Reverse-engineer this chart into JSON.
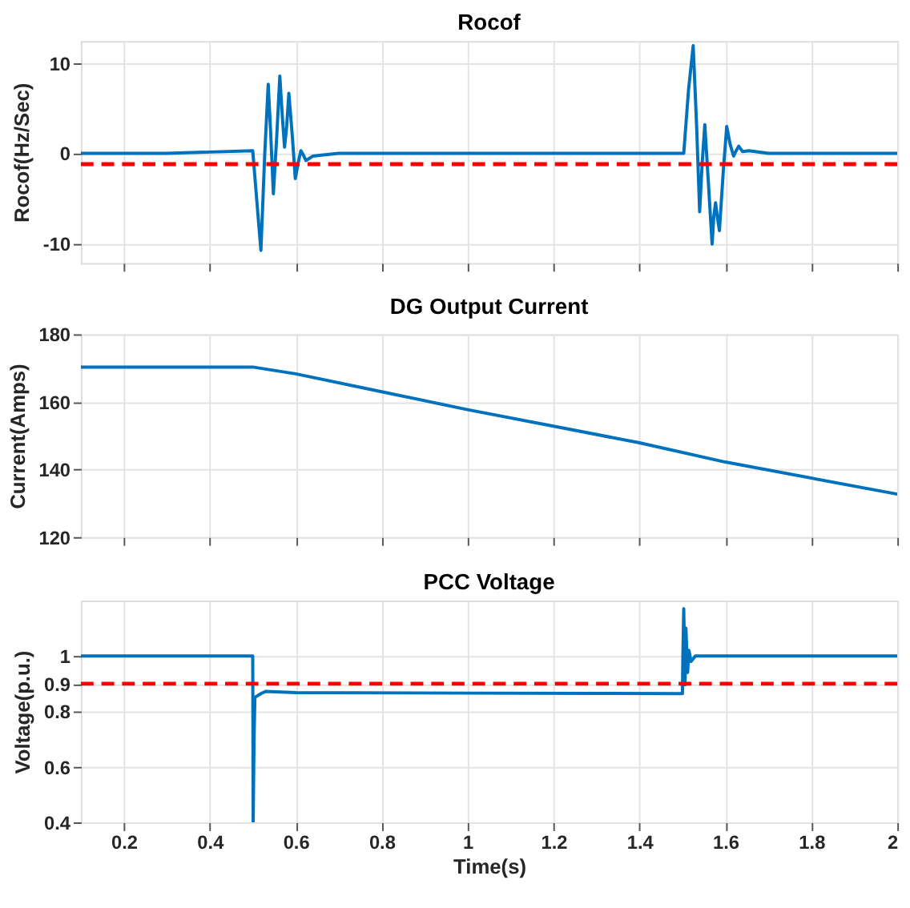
{
  "chart_data": [
    {
      "type": "line",
      "title": "Rocof",
      "ylabel": "Rocof(Hz/Sec)",
      "xlim": [
        0.1,
        2
      ],
      "xticks": [
        0.2,
        0.4,
        0.6,
        0.8,
        1,
        1.2,
        1.4,
        1.6,
        1.8,
        2
      ],
      "ylim": [
        -12.2,
        12.5
      ],
      "yticks": [
        -10,
        0,
        10
      ],
      "grid": true,
      "tick_labels": "y",
      "line_style": "solid",
      "series": [
        {
          "color": "#0072bd",
          "x": [
            0.1,
            0.3,
            0.5,
            0.509,
            0.519,
            0.528,
            0.536,
            0.542,
            0.548,
            0.556,
            0.563,
            0.569,
            0.574,
            0.579,
            0.584,
            0.592,
            0.599,
            0.606,
            0.612,
            0.618,
            0.624,
            0.64,
            0.66,
            0.7,
            1.0,
            1.3,
            1.503,
            1.514,
            1.525,
            1.533,
            1.54,
            1.546,
            1.552,
            1.56,
            1.569,
            1.573,
            1.577,
            1.581,
            1.586,
            1.595,
            1.603,
            1.611,
            1.619,
            1.625,
            1.631,
            1.64,
            1.655,
            1.7,
            2.0
          ],
          "values": [
            0,
            0,
            0.3,
            -5,
            -10.8,
            0,
            7.7,
            2,
            -4.5,
            2,
            8.6,
            4,
            0.7,
            3,
            6.7,
            2,
            -2.8,
            -1,
            0.3,
            -0.2,
            -0.8,
            -0.3,
            -0.2,
            0,
            0,
            0,
            0,
            7,
            12,
            3,
            -6.5,
            -1,
            3.2,
            -3,
            -10.1,
            -7,
            -5.5,
            -7,
            -8.6,
            -2,
            3,
            1,
            -0.3,
            0.3,
            0.8,
            0.2,
            0.3,
            0,
            0
          ]
        }
      ],
      "ref_lines": [
        {
          "axis": "y",
          "value": -1.2,
          "color": "#ff0000",
          "line_style": "dashed"
        }
      ]
    },
    {
      "type": "line",
      "title": "DG Output Current",
      "ylabel": "Current(Amps)",
      "xlim": [
        0.1,
        2
      ],
      "xticks": [
        0.2,
        0.4,
        0.6,
        0.8,
        1,
        1.2,
        1.4,
        1.6,
        1.8,
        2
      ],
      "ylim": [
        120,
        180
      ],
      "yticks": [
        120,
        140,
        160,
        180
      ],
      "grid": true,
      "tick_labels": "y",
      "line_style": "solid",
      "series": [
        {
          "color": "#0072bd",
          "x": [
            0.1,
            0.5,
            0.6,
            0.8,
            1.0,
            1.2,
            1.4,
            1.6,
            2.0
          ],
          "values": [
            170.3,
            170.3,
            168.3,
            163.0,
            157.7,
            152.8,
            147.9,
            142.2,
            132.7
          ]
        }
      ]
    },
    {
      "type": "line",
      "title": "PCC Voltage",
      "xlabel": "Time(s)",
      "ylabel": "Voltage(p.u.)",
      "xlim": [
        0.1,
        2
      ],
      "xticks": [
        0.2,
        0.4,
        0.6,
        0.8,
        1,
        1.2,
        1.4,
        1.6,
        1.8,
        2
      ],
      "ylim": [
        0.4,
        1.2
      ],
      "yticks": [
        0.4,
        0.6,
        0.8,
        0.9,
        1
      ],
      "grid": true,
      "line_style": "solid",
      "series": [
        {
          "color": "#0072bd",
          "x": [
            0.1,
            0.5,
            0.501,
            0.503,
            0.505,
            0.52,
            0.53,
            0.6,
            1.0,
            1.3,
            1.5,
            1.501,
            1.503,
            1.506,
            1.508,
            1.512,
            1.515,
            1.52,
            1.53,
            1.7,
            2.0
          ],
          "values": [
            1.0,
            1.0,
            0.4,
            0.7,
            0.851,
            0.865,
            0.872,
            0.868,
            0.866,
            0.865,
            0.864,
            1.0,
            1.17,
            0.896,
            1.1,
            0.94,
            1.02,
            0.98,
            1.0,
            1.0,
            1.0
          ]
        }
      ],
      "ref_lines": [
        {
          "axis": "y",
          "value": 0.9,
          "color": "#ff0000",
          "line_style": "dashed"
        }
      ]
    }
  ]
}
